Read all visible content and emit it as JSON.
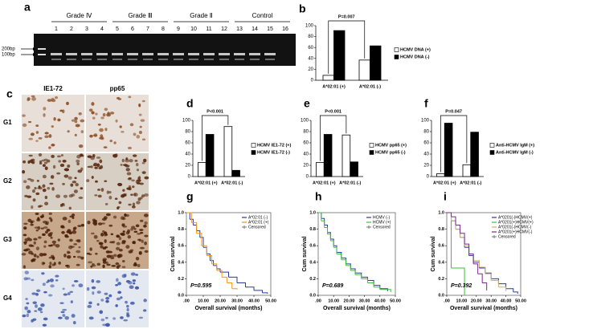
{
  "figure": {
    "panel_a": {
      "label": "a",
      "groups": [
        "Grade Ⅳ",
        "Grade Ⅲ",
        "Grade Ⅱ",
        "Control"
      ],
      "lanes": [
        "1",
        "2",
        "3",
        "4",
        "5",
        "6",
        "7",
        "8",
        "9",
        "10",
        "11",
        "12",
        "13",
        "14",
        "15",
        "16"
      ],
      "markers": [
        "200bp",
        "100bp"
      ]
    },
    "panel_c": {
      "label": "c",
      "columns": [
        "IE1-72",
        "pp65"
      ],
      "rows": [
        "G1",
        "G2",
        "G3",
        "G4"
      ]
    }
  },
  "chart_data": [
    {
      "panel": "b",
      "type": "bar",
      "annotation": "P=0.007",
      "categories": [
        "A*02:01 (+)",
        "A*02:01 (-)"
      ],
      "series": [
        {
          "name": "HCMV DNA (+)",
          "color": "#ffffff",
          "values": [
            9,
            37
          ]
        },
        {
          "name": "HCMV DNA (-)",
          "color": "#000000",
          "values": [
            91,
            63
          ]
        }
      ],
      "ylim": [
        0,
        100
      ],
      "yticks": [
        0,
        20,
        40,
        60,
        80,
        100
      ]
    },
    {
      "panel": "d",
      "type": "bar",
      "annotation": "P<0.001",
      "categories": [
        "A*02:01 (+)",
        "A*02:01 (-)"
      ],
      "series": [
        {
          "name": "HCMV IE1-72 (+)",
          "color": "#ffffff",
          "values": [
            25,
            89
          ]
        },
        {
          "name": "HCMV IE1-72 (-)",
          "color": "#000000",
          "values": [
            75,
            11
          ]
        }
      ],
      "ylim": [
        0,
        100
      ],
      "yticks": [
        0,
        20,
        40,
        60,
        80,
        100
      ]
    },
    {
      "panel": "e",
      "type": "bar",
      "annotation": "P<0.001",
      "categories": [
        "A*02:01 (+)",
        "A*02:01 (-)"
      ],
      "series": [
        {
          "name": "HCMV pp65 (+)",
          "color": "#ffffff",
          "values": [
            25,
            74
          ]
        },
        {
          "name": "HCMV pp65 (-)",
          "color": "#000000",
          "values": [
            75,
            26
          ]
        }
      ],
      "ylim": [
        0,
        100
      ],
      "yticks": [
        0,
        20,
        40,
        60,
        80,
        100
      ]
    },
    {
      "panel": "f",
      "type": "bar",
      "annotation": "P=0.047",
      "categories": [
        "A*02:01 (+)",
        "A*02:01 (-)"
      ],
      "series": [
        {
          "name": "Anti-HCMV IgM (+)",
          "color": "#ffffff",
          "values": [
            5,
            21
          ]
        },
        {
          "name": "Anti-HCMV IgM (-)",
          "color": "#000000",
          "values": [
            95,
            79
          ]
        }
      ],
      "ylim": [
        0,
        100
      ],
      "yticks": [
        0,
        20,
        40,
        60,
        80,
        100
      ]
    },
    {
      "panel": "g",
      "type": "step",
      "annotation": "P=0.595",
      "xlabel": "Overall survival (months)",
      "ylabel": "Cum survival",
      "censored_label": "Censored",
      "series": [
        {
          "name": "A*02:01 (-)",
          "color": "#2b3a9c",
          "x": [
            0,
            2,
            4,
            6,
            8,
            10,
            12,
            14,
            16,
            18,
            20,
            25,
            30,
            35,
            40,
            45,
            48
          ],
          "values": [
            1.0,
            0.92,
            0.85,
            0.78,
            0.7,
            0.58,
            0.5,
            0.42,
            0.36,
            0.32,
            0.28,
            0.22,
            0.15,
            0.1,
            0.06,
            0.03,
            0.02
          ]
        },
        {
          "name": "A*02:01 (+)",
          "color": "#f0961e",
          "x": [
            0,
            3,
            6,
            9,
            12,
            15,
            18,
            21,
            24,
            27,
            30
          ],
          "values": [
            1.0,
            0.88,
            0.75,
            0.6,
            0.48,
            0.38,
            0.3,
            0.22,
            0.15,
            0.08,
            0.07
          ]
        }
      ],
      "xlim": [
        0,
        50
      ],
      "ylim": [
        0,
        1
      ],
      "xticks": [
        {
          "value": 0,
          "label": ".00"
        },
        {
          "value": 10,
          "label": "10.00"
        },
        {
          "value": 20,
          "label": "20.00"
        },
        {
          "value": 30,
          "label": "30.00"
        },
        {
          "value": 40,
          "label": "40.00"
        },
        {
          "value": 50,
          "label": "50.00"
        }
      ],
      "yticks": [
        {
          "value": 0,
          "label": "0.0"
        },
        0.2,
        0.4,
        0.6,
        0.8,
        {
          "value": 1,
          "label": "1.0"
        }
      ]
    },
    {
      "panel": "h",
      "type": "step",
      "annotation": "P=0.689",
      "xlabel": "Overall survival (months)",
      "ylabel": "Cum survival",
      "censored_label": "Censored",
      "series": [
        {
          "name": "HCMV (-)",
          "color": "#2b3a9c",
          "x": [
            0,
            2,
            4,
            6,
            8,
            10,
            12,
            15,
            18,
            21,
            24,
            28,
            32,
            36,
            40,
            45
          ],
          "values": [
            1.0,
            0.93,
            0.85,
            0.76,
            0.68,
            0.6,
            0.52,
            0.45,
            0.38,
            0.32,
            0.27,
            0.22,
            0.18,
            0.12,
            0.08,
            0.05
          ]
        },
        {
          "name": "HCMV (+)",
          "color": "#3cbf3c",
          "x": [
            0,
            2,
            4,
            6,
            8,
            10,
            12,
            15,
            18,
            21,
            24,
            28,
            32,
            36,
            40,
            47
          ],
          "values": [
            1.0,
            0.9,
            0.82,
            0.74,
            0.66,
            0.58,
            0.5,
            0.43,
            0.36,
            0.3,
            0.25,
            0.2,
            0.15,
            0.1,
            0.07,
            0.04
          ]
        }
      ],
      "xlim": [
        0,
        50
      ],
      "ylim": [
        0,
        1
      ],
      "xticks": [
        {
          "value": 0,
          "label": ".00"
        },
        {
          "value": 10,
          "label": "10.00"
        },
        {
          "value": 20,
          "label": "20.00"
        },
        {
          "value": 30,
          "label": "30.00"
        },
        {
          "value": 40,
          "label": "40.00"
        },
        {
          "value": 50,
          "label": "50.00"
        }
      ],
      "yticks": [
        {
          "value": 0,
          "label": "0.0"
        },
        0.2,
        0.4,
        0.6,
        0.8,
        {
          "value": 1,
          "label": "1.0"
        }
      ]
    },
    {
      "panel": "i",
      "type": "step",
      "annotation": "P=0.392",
      "xlabel": "Overall survival (months)",
      "ylabel": "Cum survival",
      "censored_label": "Censored",
      "series": [
        {
          "name": "A*0201(-)HCMV(+)",
          "color": "#2b3a9c",
          "x": [
            0,
            3,
            6,
            9,
            12,
            15,
            18,
            22,
            26,
            30,
            35,
            40,
            45,
            48
          ],
          "values": [
            1.0,
            0.9,
            0.8,
            0.7,
            0.58,
            0.48,
            0.4,
            0.33,
            0.27,
            0.2,
            0.14,
            0.08,
            0.04,
            0.02
          ]
        },
        {
          "name": "A*0201(+)HCMV(+)",
          "color": "#3cbf3c",
          "x": [
            0,
            3,
            12
          ],
          "values": [
            1.0,
            0.33,
            0.0
          ]
        },
        {
          "name": "A*0201(-)HCMV(-)",
          "color": "#c8b46e",
          "x": [
            0,
            3,
            6,
            9,
            12,
            15,
            18,
            22,
            26,
            30,
            35,
            40
          ],
          "values": [
            1.0,
            0.9,
            0.8,
            0.7,
            0.6,
            0.5,
            0.42,
            0.34,
            0.26,
            0.18,
            0.1,
            0.05
          ]
        },
        {
          "name": "A*0201(+)HCMV(-)",
          "color": "#7a2a8a",
          "x": [
            0,
            3,
            6,
            9,
            12,
            15,
            18,
            21,
            24,
            27
          ],
          "values": [
            1.0,
            0.95,
            0.85,
            0.75,
            0.62,
            0.5,
            0.38,
            0.26,
            0.15,
            0.06
          ]
        }
      ],
      "xlim": [
        0,
        50
      ],
      "ylim": [
        0,
        1
      ],
      "xticks": [
        {
          "value": 0,
          "label": ".00"
        },
        {
          "value": 10,
          "label": "10.00"
        },
        {
          "value": 20,
          "label": "20.00"
        },
        {
          "value": 30,
          "label": "30.00"
        },
        {
          "value": 40,
          "label": "40.00"
        },
        {
          "value": 50,
          "label": "50.00"
        }
      ],
      "yticks": [
        {
          "value": 0,
          "label": "0.0"
        },
        0.2,
        0.4,
        0.6,
        0.8,
        {
          "value": 1,
          "label": "1.0"
        }
      ]
    }
  ]
}
